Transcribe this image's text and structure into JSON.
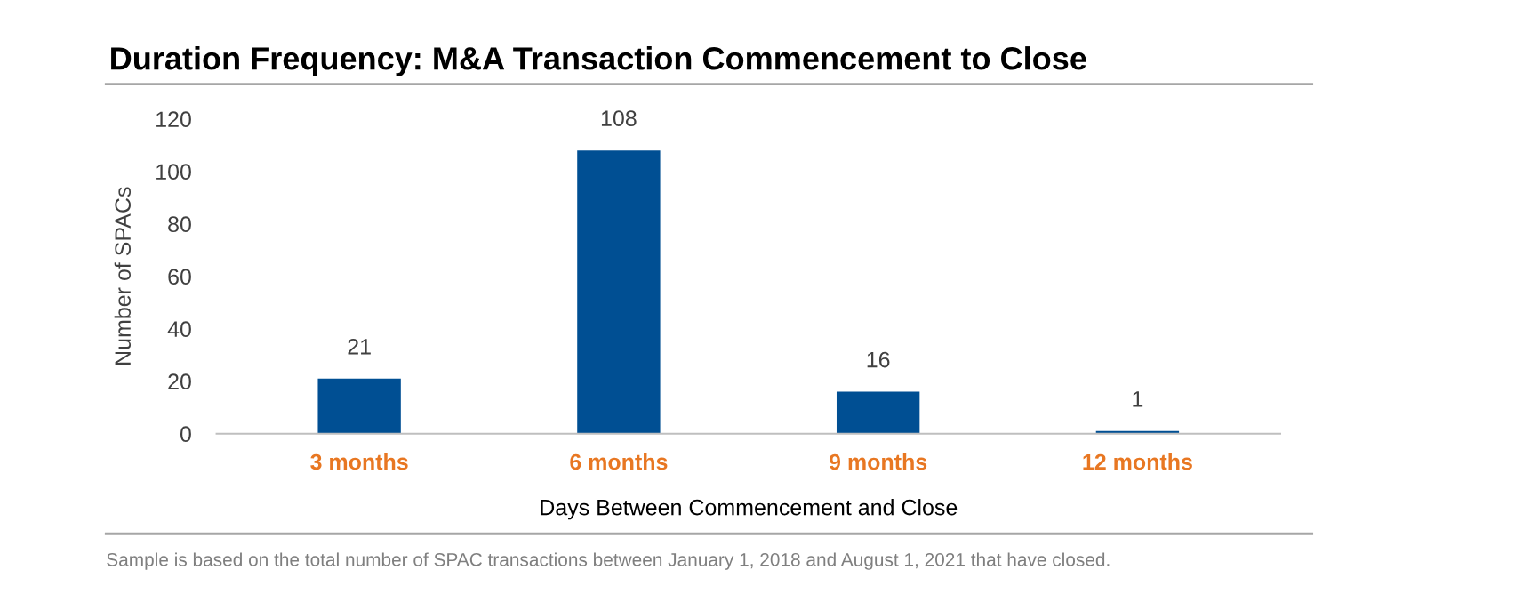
{
  "chart_data": {
    "type": "bar",
    "title": "Duration Frequency: M&A Transaction Commencement to Close",
    "xlabel": "Days Between Commencement and Close",
    "ylabel": "Number of SPACs",
    "categories": [
      "3 months",
      "6 months",
      "9 months",
      "12 months"
    ],
    "values": [
      21,
      108,
      16,
      1
    ],
    "color": "#004f93",
    "ylim": [
      0,
      120
    ],
    "yticks": [
      0,
      20,
      40,
      60,
      80,
      100,
      120
    ],
    "grid": false,
    "data_labels": true,
    "annotations": [
      "Sample is based on the total number of SPAC transactions between January 1, 2018 and August 1, 2021 that have closed."
    ]
  }
}
